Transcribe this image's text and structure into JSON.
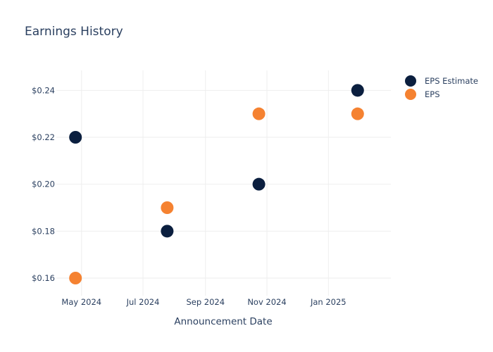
{
  "chart_data": {
    "type": "scatter",
    "title": "Earnings History",
    "xlabel": "Announcement Date",
    "ylabel": "",
    "x_ticks": [
      "May 2024",
      "Jul 2024",
      "Sep 2024",
      "Nov 2024",
      "Jan 2025"
    ],
    "x_tick_dates": [
      "2024-05-01",
      "2024-07-01",
      "2024-09-01",
      "2024-11-01",
      "2025-01-01"
    ],
    "xlim": [
      "2024-04-06",
      "2025-03-04"
    ],
    "y_ticks": [
      "$0.16",
      "$0.18",
      "$0.20",
      "$0.22",
      "$0.24"
    ],
    "y_tick_values": [
      0.16,
      0.18,
      0.2,
      0.22,
      0.24
    ],
    "ylim": [
      0.1525,
      0.2485
    ],
    "grid": true,
    "legend_position": "top-right",
    "series": [
      {
        "name": "EPS Estimate",
        "color": "#0b1f3f",
        "points": [
          {
            "x": "2024-04-25",
            "y": 0.22
          },
          {
            "x": "2024-07-25",
            "y": 0.18
          },
          {
            "x": "2024-10-24",
            "y": 0.2
          },
          {
            "x": "2025-01-30",
            "y": 0.24
          }
        ]
      },
      {
        "name": "EPS",
        "color": "#f58231",
        "points": [
          {
            "x": "2024-04-25",
            "y": 0.16
          },
          {
            "x": "2024-07-25",
            "y": 0.19
          },
          {
            "x": "2024-10-24",
            "y": 0.23
          },
          {
            "x": "2025-01-30",
            "y": 0.23
          }
        ]
      }
    ]
  }
}
